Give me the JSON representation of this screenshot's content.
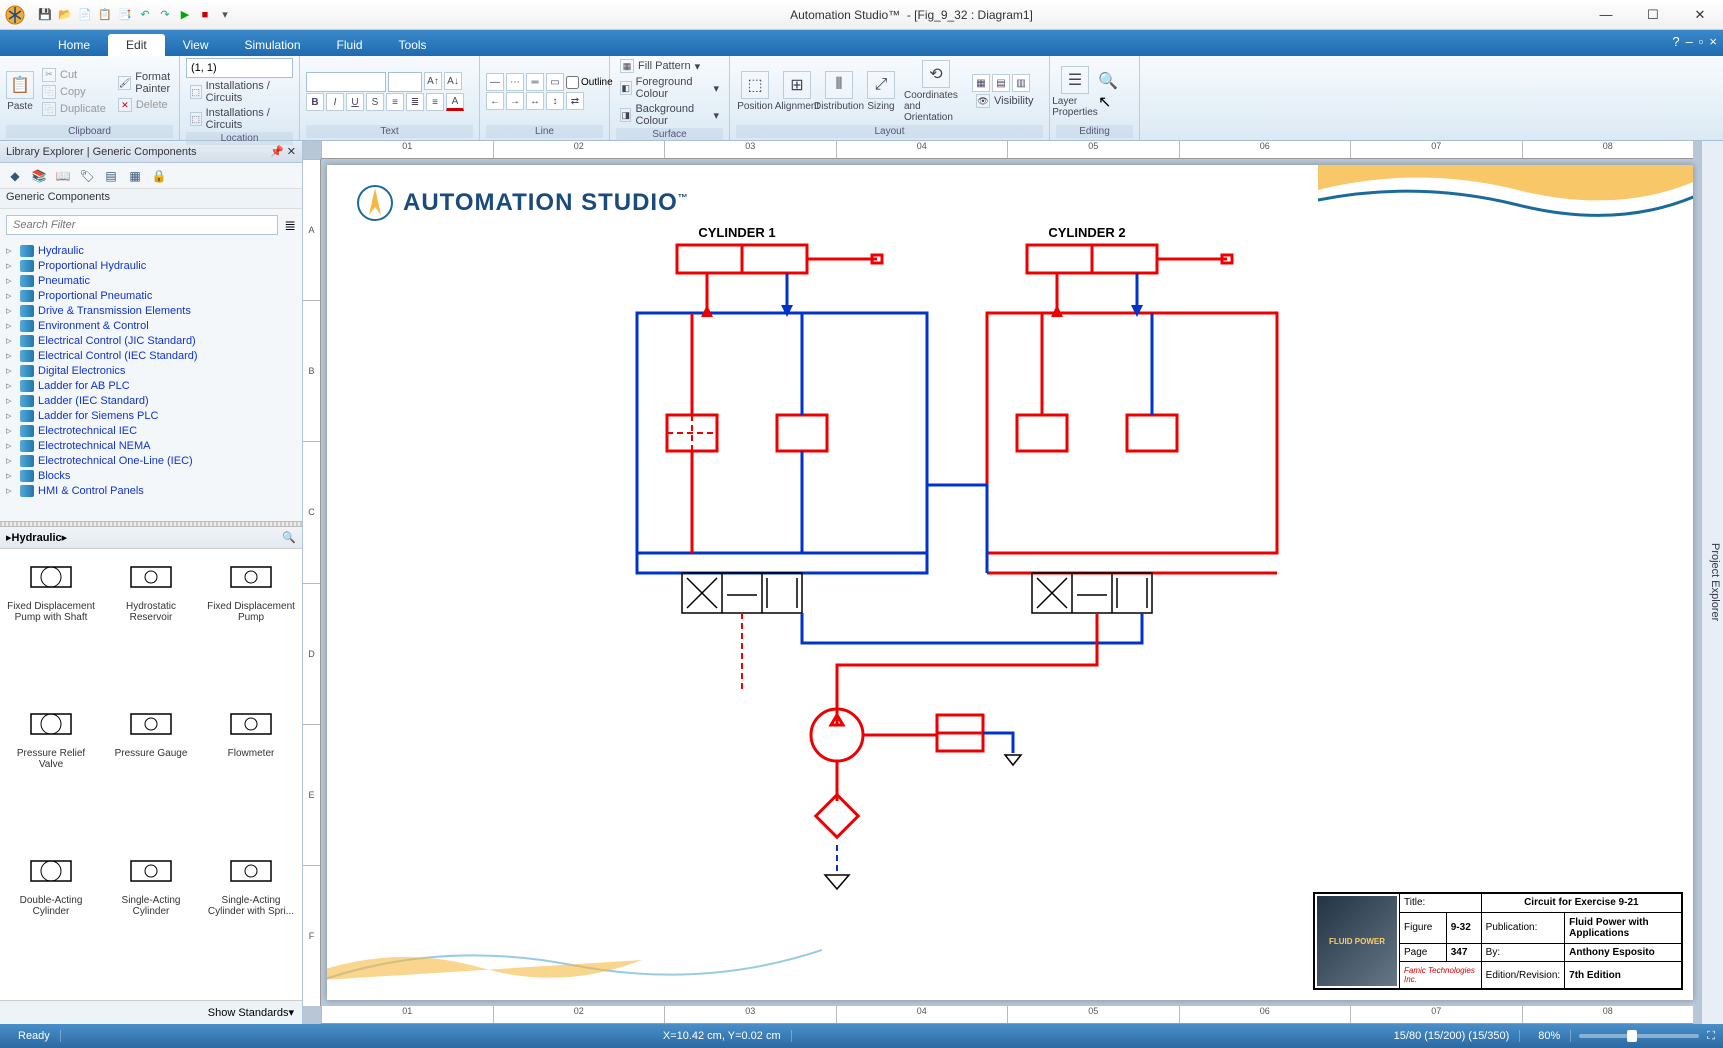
{
  "app": {
    "title": "Automation Studio™",
    "doc": "[Fig_9_32 : Diagram1]",
    "brand": "AUTOMATION STUDIO"
  },
  "tabs": [
    "Home",
    "Edit",
    "View",
    "Simulation",
    "Fluid",
    "Tools"
  ],
  "tab_active": 1,
  "ribbon": {
    "clipboard": {
      "label": "Clipboard",
      "paste": "Paste",
      "cut": "Cut",
      "copy": "Copy",
      "duplicate": "Duplicate",
      "format_painter": "Format Painter",
      "delete": "Delete"
    },
    "location": {
      "label": "Location",
      "coord": "(1, 1)",
      "inst1": "Installations / Circuits",
      "inst2": "Installations / Circuits"
    },
    "text": {
      "label": "Text"
    },
    "line": {
      "label": "Line"
    },
    "surface": {
      "label": "Surface",
      "fill": "Fill Pattern",
      "fg": "Foreground Colour",
      "bg": "Background Colour",
      "outline": "Outline"
    },
    "layout": {
      "label": "Layout",
      "position": "Position",
      "alignment": "Alignment",
      "distribution": "Distribution",
      "sizing": "Sizing",
      "coord": "Coordinates and Orientation",
      "visibility": "Visibility"
    },
    "editing": {
      "label": "Editing",
      "layer": "Layer Properties"
    }
  },
  "library": {
    "title": "Library Explorer | Generic Components",
    "subtitle": "Generic Components",
    "search_placeholder": "Search Filter",
    "items": [
      "Hydraulic",
      "Proportional Hydraulic",
      "Pneumatic",
      "Proportional Pneumatic",
      "Drive & Transmission Elements",
      "Environment & Control",
      "Electrical Control (JIC Standard)",
      "Electrical Control (IEC Standard)",
      "Digital Electronics",
      "Ladder for AB PLC",
      "Ladder (IEC Standard)",
      "Ladder for Siemens PLC",
      "Electrotechnical IEC",
      "Electrotechnical NEMA",
      "Electrotechnical One-Line (IEC)",
      "Blocks",
      "HMI & Control Panels"
    ],
    "category": "Hydraulic",
    "palette": [
      "Fixed Displacement Pump with Shaft",
      "Hydrostatic Reservoir",
      "Fixed Displacement Pump",
      "Pressure Relief Valve",
      "Pressure Gauge",
      "Flowmeter",
      "Double-Acting Cylinder",
      "Single-Acting Cylinder",
      "Single-Acting Cylinder with Spri..."
    ],
    "show_std": "Show Standards"
  },
  "right_panel": "Project Explorer",
  "ruler_cols": [
    "01",
    "02",
    "03",
    "04",
    "05",
    "06",
    "07",
    "08"
  ],
  "ruler_rows": [
    "A",
    "B",
    "C",
    "D",
    "E",
    "F"
  ],
  "diagram": {
    "cyl1": "CYLINDER 1",
    "cyl2": "CYLINDER 2",
    "colors": {
      "pressure": "#e00000",
      "return": "#0033cc",
      "mech": "#000000"
    }
  },
  "titleblock": {
    "title_lbl": "Title:",
    "title": "Circuit for Exercise 9-21",
    "fig_lbl": "Figure",
    "fig": "9-32",
    "page_lbl": "Page",
    "page": "347",
    "pub_lbl": "Publication:",
    "pub": "Fluid Power with Applications",
    "by_lbl": "By:",
    "by": "Anthony Esposito",
    "ed_lbl": "Edition/Revision:",
    "ed": "7th Edition",
    "thumb": "FLUID POWER",
    "company": "Famic Technologies Inc."
  },
  "status": {
    "ready": "Ready",
    "coords": "X=10.42 cm, Y=0.02 cm",
    "layers": "15/80 (15/200) (15/350)",
    "zoom": "80%"
  }
}
